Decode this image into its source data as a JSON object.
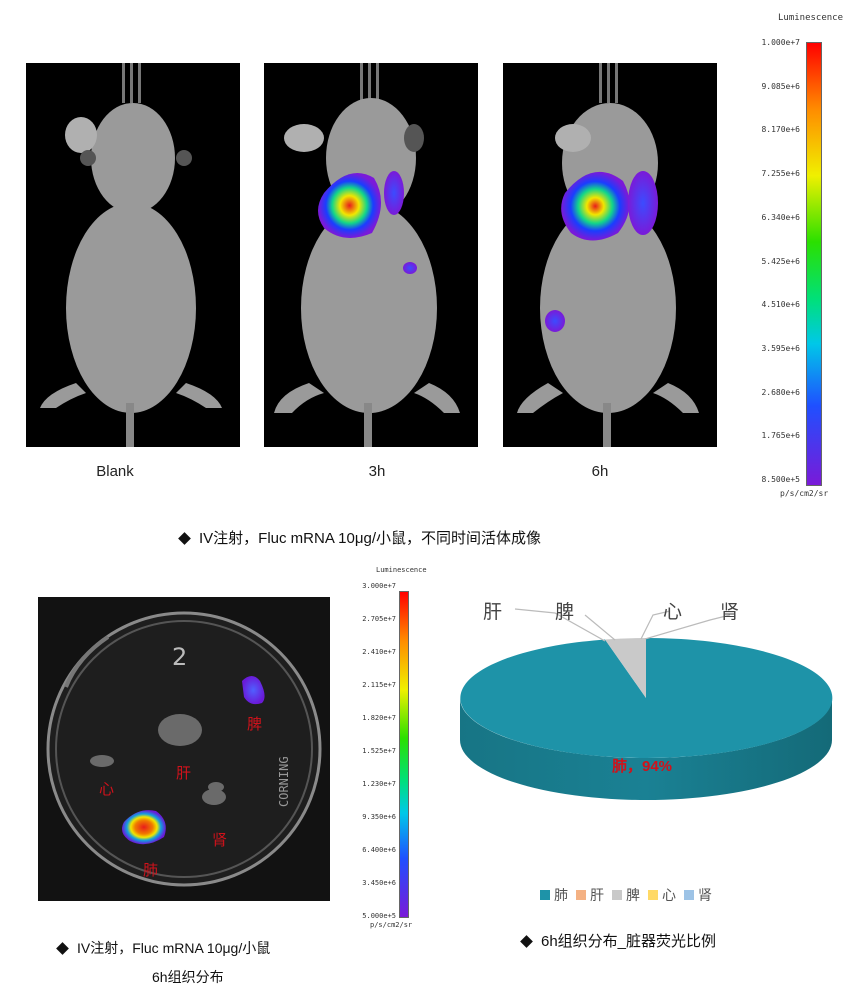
{
  "top_scale": {
    "title": "Luminescence",
    "ticks": [
      "1.000e+7",
      "9.085e+6",
      "8.170e+6",
      "7.255e+6",
      "6.340e+6",
      "5.425e+6",
      "4.510e+6",
      "3.595e+6",
      "2.680e+6",
      "1.765e+6",
      "8.500e+5"
    ],
    "unit": "p/s/cm2/sr"
  },
  "panels": [
    {
      "label": "Blank"
    },
    {
      "label": "3h"
    },
    {
      "label": "6h"
    }
  ],
  "top_caption": "IV注射，Fluc mRNA 10μg/小鼠，不同时间活体成像",
  "dish": {
    "dish_mark": "2",
    "side_mark": "CORNING",
    "organs": {
      "spleen": "脾",
      "liver": "肝",
      "heart": "心",
      "kidney": "肾",
      "lung": "肺"
    }
  },
  "bottom_scale": {
    "title": "Luminescence",
    "ticks": [
      "3.000e+7",
      "2.705e+7",
      "2.410e+7",
      "2.115e+7",
      "1.820e+7",
      "1.525e+7",
      "1.230e+7",
      "9.350e+6",
      "6.400e+6",
      "3.450e+6",
      "5.000e+5"
    ],
    "unit": "p/s/cm2/sr"
  },
  "bottom_left_caption": {
    "line1": "IV注射，Fluc mRNA 10μg/小鼠",
    "line2": "6h组织分布"
  },
  "chart_data": {
    "type": "pie",
    "categories": [
      "肺",
      "肝",
      "脾",
      "心",
      "肾"
    ],
    "values": [
      94,
      0.3,
      5.2,
      0.2,
      0.3
    ],
    "colors": [
      "#1e93a8",
      "#f4b183",
      "#c9c9c9",
      "#ffd966",
      "#9dc3e6"
    ],
    "data_label": "肺，94%",
    "outer_labels": [
      "肝",
      "脾",
      "心",
      "肾"
    ],
    "legend_placement": "bottom",
    "caption": "6h组织分布_脏器荧光比例"
  }
}
